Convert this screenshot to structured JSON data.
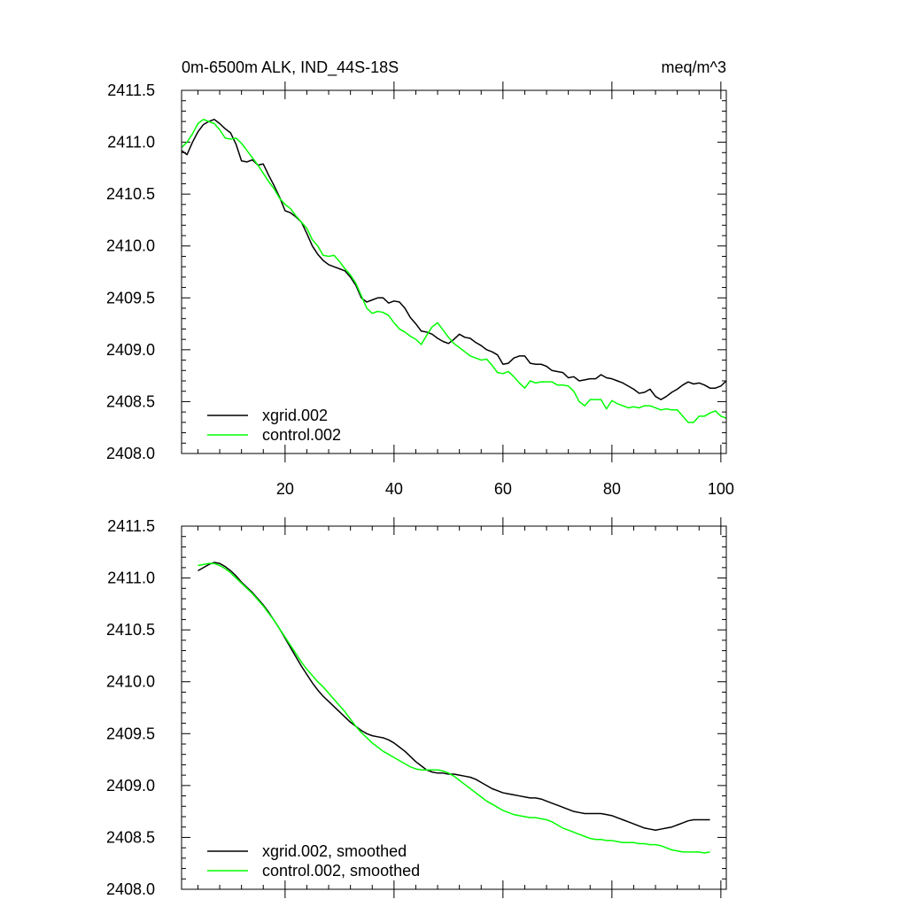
{
  "chart_data": [
    {
      "type": "line",
      "title": "0m-6500m ALK, IND_44S-18S",
      "units": "meq/m^3",
      "xlabel": "",
      "ylabel": "",
      "xlim": [
        1,
        101
      ],
      "ylim": [
        2408.0,
        2411.5
      ],
      "xticks": [
        20,
        40,
        60,
        80,
        100
      ],
      "yticks": [
        2408.0,
        2408.5,
        2409.0,
        2409.5,
        2410.0,
        2410.5,
        2411.0,
        2411.5
      ],
      "ytick_labels": [
        "2408.0",
        "2408.5",
        "2409.0",
        "2409.5",
        "2410.0",
        "2410.5",
        "2411.0",
        "2411.5"
      ],
      "xtick_labels": [
        "20",
        "40",
        "60",
        "80",
        "100"
      ],
      "show_xtick_labels": true,
      "legend_position": "bottom-left",
      "series": [
        {
          "name": "xgrid.002",
          "color": "#000000",
          "x": [
            1,
            2,
            3,
            4,
            5,
            6,
            7,
            8,
            9,
            10,
            11,
            12,
            13,
            14,
            15,
            16,
            17,
            18,
            19,
            20,
            21,
            22,
            23,
            24,
            25,
            26,
            27,
            28,
            29,
            30,
            31,
            32,
            33,
            34,
            35,
            36,
            37,
            38,
            39,
            40,
            41,
            42,
            43,
            44,
            45,
            46,
            47,
            48,
            49,
            50,
            51,
            52,
            53,
            54,
            55,
            56,
            57,
            58,
            59,
            60,
            61,
            62,
            63,
            64,
            65,
            66,
            67,
            68,
            69,
            70,
            71,
            72,
            73,
            74,
            75,
            76,
            77,
            78,
            79,
            80,
            81,
            82,
            83,
            84,
            85,
            86,
            87,
            88,
            89,
            90,
            91,
            92,
            93,
            94,
            95,
            96,
            97,
            98,
            99,
            100,
            101
          ],
          "values": [
            2410.92,
            2410.88,
            2411.0,
            2411.1,
            2411.17,
            2411.2,
            2411.22,
            2411.18,
            2411.13,
            2411.09,
            2410.98,
            2410.82,
            2410.81,
            2410.83,
            2410.78,
            2410.79,
            2410.68,
            2410.58,
            2410.47,
            2410.34,
            2410.32,
            2410.28,
            2410.23,
            2410.12,
            2410.0,
            2409.92,
            2409.86,
            2409.82,
            2409.8,
            2409.78,
            2409.76,
            2409.7,
            2409.62,
            2409.5,
            2409.46,
            2409.48,
            2409.5,
            2409.5,
            2409.45,
            2409.47,
            2409.46,
            2409.4,
            2409.31,
            2409.25,
            2409.18,
            2409.17,
            2409.15,
            2409.11,
            2409.08,
            2409.06,
            2409.1,
            2409.15,
            2409.12,
            2409.11,
            2409.07,
            2409.04,
            2409.0,
            2408.98,
            2408.95,
            2408.86,
            2408.87,
            2408.92,
            2408.94,
            2408.94,
            2408.87,
            2408.86,
            2408.86,
            2408.84,
            2408.8,
            2408.79,
            2408.78,
            2408.73,
            2408.74,
            2408.7,
            2408.71,
            2408.72,
            2408.72,
            2408.76,
            2408.73,
            2408.72,
            2408.7,
            2408.68,
            2408.65,
            2408.62,
            2408.58,
            2408.59,
            2408.62,
            2408.55,
            2408.52,
            2408.55,
            2408.59,
            2408.62,
            2408.66,
            2408.69,
            2408.67,
            2408.68,
            2408.66,
            2408.63,
            2408.63,
            2408.65,
            2408.7
          ]
        },
        {
          "name": "control.002",
          "color": "#00ff00",
          "x": [
            1,
            2,
            3,
            4,
            5,
            6,
            7,
            8,
            9,
            10,
            11,
            12,
            13,
            14,
            15,
            16,
            17,
            18,
            19,
            20,
            21,
            22,
            23,
            24,
            25,
            26,
            27,
            28,
            29,
            30,
            31,
            32,
            33,
            34,
            35,
            36,
            37,
            38,
            39,
            40,
            41,
            42,
            43,
            44,
            45,
            46,
            47,
            48,
            49,
            50,
            51,
            52,
            53,
            54,
            55,
            56,
            57,
            58,
            59,
            60,
            61,
            62,
            63,
            64,
            65,
            66,
            67,
            68,
            69,
            70,
            71,
            72,
            73,
            74,
            75,
            76,
            77,
            78,
            79,
            80,
            81,
            82,
            83,
            84,
            85,
            86,
            87,
            88,
            89,
            90,
            91,
            92,
            93,
            94,
            95,
            96,
            97,
            98,
            99,
            100,
            101
          ],
          "values": [
            2410.95,
            2411.0,
            2411.08,
            2411.18,
            2411.22,
            2411.2,
            2411.18,
            2411.12,
            2411.04,
            2411.03,
            2411.04,
            2410.99,
            2410.92,
            2410.85,
            2410.78,
            2410.7,
            2410.62,
            2410.55,
            2410.46,
            2410.4,
            2410.36,
            2410.29,
            2410.23,
            2410.17,
            2410.06,
            2410.0,
            2409.91,
            2409.9,
            2409.91,
            2409.85,
            2409.78,
            2409.72,
            2409.64,
            2409.52,
            2409.4,
            2409.35,
            2409.37,
            2409.36,
            2409.33,
            2409.26,
            2409.2,
            2409.17,
            2409.13,
            2409.1,
            2409.05,
            2409.14,
            2409.22,
            2409.26,
            2409.19,
            2409.12,
            2409.06,
            2409.02,
            2408.98,
            2408.94,
            2408.92,
            2408.9,
            2408.91,
            2408.85,
            2408.78,
            2408.77,
            2408.79,
            2408.74,
            2408.68,
            2408.63,
            2408.7,
            2408.68,
            2408.69,
            2408.69,
            2408.69,
            2408.66,
            2408.66,
            2408.65,
            2408.6,
            2408.5,
            2408.46,
            2408.52,
            2408.52,
            2408.52,
            2408.43,
            2408.51,
            2408.48,
            2408.46,
            2408.44,
            2408.45,
            2408.44,
            2408.46,
            2408.46,
            2408.44,
            2408.42,
            2408.43,
            2408.42,
            2408.42,
            2408.36,
            2408.3,
            2408.3,
            2408.36,
            2408.36,
            2408.39,
            2408.41,
            2408.36,
            2408.34
          ]
        }
      ]
    },
    {
      "type": "line",
      "title": "",
      "xlabel": "",
      "ylabel": "",
      "xlim": [
        1,
        101
      ],
      "ylim": [
        2408.0,
        2411.5
      ],
      "xticks": [
        20,
        40,
        60,
        80,
        100
      ],
      "yticks": [
        2408.0,
        2408.5,
        2409.0,
        2409.5,
        2410.0,
        2410.5,
        2411.0,
        2411.5
      ],
      "ytick_labels": [
        "2408.0",
        "2408.5",
        "2409.0",
        "2409.5",
        "2410.0",
        "2410.5",
        "2411.0",
        "2411.5"
      ],
      "show_xtick_labels": false,
      "legend_position": "bottom-left",
      "series": [
        {
          "name": "xgrid.002, smoothed",
          "color": "#000000",
          "x": [
            4,
            5,
            6,
            7,
            8,
            9,
            10,
            11,
            12,
            13,
            14,
            15,
            16,
            17,
            18,
            19,
            20,
            21,
            22,
            23,
            24,
            25,
            26,
            27,
            28,
            29,
            30,
            31,
            32,
            33,
            34,
            35,
            36,
            37,
            38,
            39,
            40,
            41,
            42,
            43,
            44,
            45,
            46,
            47,
            48,
            49,
            50,
            51,
            52,
            53,
            54,
            55,
            56,
            57,
            58,
            59,
            60,
            61,
            62,
            63,
            64,
            65,
            66,
            67,
            68,
            69,
            70,
            71,
            72,
            73,
            74,
            75,
            76,
            77,
            78,
            79,
            80,
            81,
            82,
            83,
            84,
            85,
            86,
            87,
            88,
            89,
            90,
            91,
            92,
            93,
            94,
            95,
            96,
            97,
            98
          ],
          "values": [
            2411.07,
            2411.1,
            2411.13,
            2411.15,
            2411.14,
            2411.11,
            2411.07,
            2411.02,
            2410.96,
            2410.91,
            2410.86,
            2410.8,
            2410.74,
            2410.67,
            2410.59,
            2410.51,
            2410.42,
            2410.33,
            2410.24,
            2410.15,
            2410.07,
            2409.99,
            2409.92,
            2409.86,
            2409.81,
            2409.76,
            2409.71,
            2409.66,
            2409.61,
            2409.57,
            2409.53,
            2409.5,
            2409.48,
            2409.47,
            2409.46,
            2409.44,
            2409.41,
            2409.37,
            2409.33,
            2409.28,
            2409.23,
            2409.19,
            2409.15,
            2409.13,
            2409.12,
            2409.12,
            2409.11,
            2409.11,
            2409.1,
            2409.09,
            2409.08,
            2409.06,
            2409.03,
            2409.0,
            2408.97,
            2408.95,
            2408.93,
            2408.92,
            2408.91,
            2408.9,
            2408.89,
            2408.88,
            2408.88,
            2408.87,
            2408.85,
            2408.83,
            2408.81,
            2408.79,
            2408.77,
            2408.75,
            2408.74,
            2408.73,
            2408.73,
            2408.73,
            2408.73,
            2408.72,
            2408.71,
            2408.69,
            2408.67,
            2408.65,
            2408.63,
            2408.61,
            2408.59,
            2408.58,
            2408.57,
            2408.58,
            2408.59,
            2408.6,
            2408.62,
            2408.64,
            2408.66,
            2408.67,
            2408.67,
            2408.67,
            2408.67
          ]
        },
        {
          "name": "control.002, smoothed",
          "color": "#00ff00",
          "x": [
            4,
            5,
            6,
            7,
            8,
            9,
            10,
            11,
            12,
            13,
            14,
            15,
            16,
            17,
            18,
            19,
            20,
            21,
            22,
            23,
            24,
            25,
            26,
            27,
            28,
            29,
            30,
            31,
            32,
            33,
            34,
            35,
            36,
            37,
            38,
            39,
            40,
            41,
            42,
            43,
            44,
            45,
            46,
            47,
            48,
            49,
            50,
            51,
            52,
            53,
            54,
            55,
            56,
            57,
            58,
            59,
            60,
            61,
            62,
            63,
            64,
            65,
            66,
            67,
            68,
            69,
            70,
            71,
            72,
            73,
            74,
            75,
            76,
            77,
            78,
            79,
            80,
            81,
            82,
            83,
            84,
            85,
            86,
            87,
            88,
            89,
            90,
            91,
            92,
            93,
            94,
            95,
            96,
            97,
            98
          ],
          "values": [
            2411.12,
            2411.13,
            2411.14,
            2411.14,
            2411.12,
            2411.09,
            2411.05,
            2411.0,
            2410.95,
            2410.9,
            2410.85,
            2410.79,
            2410.73,
            2410.66,
            2410.59,
            2410.51,
            2410.43,
            2410.35,
            2410.27,
            2410.19,
            2410.12,
            2410.06,
            2410.0,
            2409.95,
            2409.89,
            2409.83,
            2409.77,
            2409.71,
            2409.64,
            2409.57,
            2409.51,
            2409.46,
            2409.41,
            2409.37,
            2409.33,
            2409.3,
            2409.27,
            2409.24,
            2409.21,
            2409.18,
            2409.16,
            2409.15,
            2409.15,
            2409.15,
            2409.15,
            2409.14,
            2409.12,
            2409.09,
            2409.05,
            2409.01,
            2408.97,
            2408.93,
            2408.89,
            2408.85,
            2408.82,
            2408.79,
            2408.76,
            2408.74,
            2408.72,
            2408.71,
            2408.7,
            2408.69,
            2408.69,
            2408.68,
            2408.67,
            2408.65,
            2408.62,
            2408.59,
            2408.57,
            2408.55,
            2408.53,
            2408.51,
            2408.49,
            2408.48,
            2408.48,
            2408.47,
            2408.47,
            2408.46,
            2408.45,
            2408.45,
            2408.45,
            2408.44,
            2408.44,
            2408.43,
            2408.43,
            2408.42,
            2408.4,
            2408.38,
            2408.37,
            2408.36,
            2408.36,
            2408.36,
            2408.36,
            2408.35,
            2408.36
          ]
        }
      ]
    }
  ]
}
